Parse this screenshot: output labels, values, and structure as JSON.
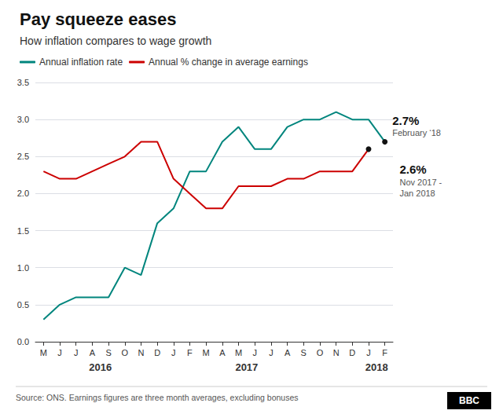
{
  "chart_data": {
    "type": "line",
    "title": "Pay squeeze eases",
    "subtitle": "How inflation compares to wage growth",
    "categories": [
      "M",
      "J",
      "J",
      "A",
      "S",
      "O",
      "N",
      "D",
      "J",
      "F",
      "M",
      "A",
      "M",
      "J",
      "J",
      "A",
      "S",
      "O",
      "N",
      "D",
      "J",
      "F"
    ],
    "series": [
      {
        "name": "Annual inflation rate",
        "color": "#00857d",
        "values": [
          0.3,
          0.5,
          0.6,
          0.6,
          0.6,
          1.0,
          0.9,
          1.6,
          1.8,
          2.3,
          2.3,
          2.7,
          2.9,
          2.6,
          2.6,
          2.9,
          3.0,
          3.0,
          3.1,
          3.0,
          3.0,
          2.7
        ]
      },
      {
        "name": "Annual % change in average earnings",
        "color": "#cc0000",
        "values": [
          2.3,
          2.2,
          2.2,
          2.3,
          2.4,
          2.5,
          2.7,
          2.7,
          2.2,
          2.0,
          1.8,
          1.8,
          2.1,
          2.1,
          2.1,
          2.2,
          2.2,
          2.3,
          2.3,
          2.3,
          2.6,
          null
        ]
      }
    ],
    "ylim": [
      0,
      3.5
    ],
    "yticks": [
      {
        "value": 0,
        "label": "0.0"
      },
      0.5,
      {
        "value": 1,
        "label": "1.0"
      },
      1.5,
      {
        "value": 2,
        "label": "2.0"
      },
      2.5,
      {
        "value": 3,
        "label": "3.0"
      },
      3.5
    ],
    "grid": true,
    "legend": "upper left",
    "annotations": [
      {
        "text": "2.7%",
        "subtext": "February ‘18",
        "x": 21,
        "y": 2.7
      },
      {
        "text": "2.6%",
        "subtext": "Nov 2017 -\nJan 2018",
        "x": 20,
        "y": 2.6
      },
      {
        "text": "2016",
        "x": 3.5
      },
      {
        "text": "2017",
        "x": 12.5
      },
      {
        "text": "2018",
        "x": 20.5
      }
    ],
    "source": "Source: ONS. Earnings figures are three month averages, excluding bonuses",
    "logo": "BBC"
  }
}
